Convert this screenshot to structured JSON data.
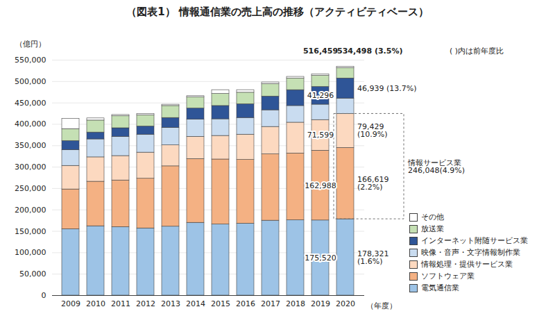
{
  "chart_data": {
    "type": "bar",
    "stacked": true,
    "title": "（図表1） 情報通信業の売上高の推移（アクティビティベース）",
    "ylabel": "（億円）",
    "xlabel": "（年度）",
    "note": "( )内は前年度比",
    "categories": [
      "2009",
      "2010",
      "2011",
      "2012",
      "2013",
      "2014",
      "2015",
      "2016",
      "2017",
      "2018",
      "2019",
      "2020"
    ],
    "series": [
      {
        "name": "電気通信業",
        "color": "#9dc3e6",
        "values": [
          155000,
          162000,
          160000,
          157000,
          161000,
          170000,
          166000,
          168000,
          175000,
          176000,
          175520,
          178321
        ]
      },
      {
        "name": "ソフトウェア業",
        "color": "#f4b183",
        "values": [
          93000,
          104000,
          109000,
          116000,
          141000,
          149000,
          152000,
          149000,
          155000,
          156000,
          162988,
          166619
        ]
      },
      {
        "name": "情報処理・提供サービス業",
        "color": "#fcd9c0",
        "values": [
          55000,
          57000,
          57000,
          61000,
          49000,
          52000,
          55000,
          59000,
          64000,
          72000,
          71599,
          79429
        ]
      },
      {
        "name": "映像・音声・文字情報制作業",
        "color": "#c9dcf0",
        "values": [
          37000,
          42000,
          45000,
          42000,
          41000,
          40000,
          39000,
          39000,
          39000,
          39000,
          36000,
          36000
        ]
      },
      {
        "name": "インターネット附随サービス業",
        "color": "#2f5597",
        "values": [
          21000,
          16000,
          20000,
          19000,
          23000,
          26000,
          31000,
          32000,
          32000,
          37000,
          41296,
          46939
        ]
      },
      {
        "name": "放送業",
        "color": "#c5e0b4",
        "values": [
          28000,
          28000,
          28000,
          26000,
          28000,
          26000,
          28000,
          27000,
          29000,
          27000,
          26000,
          24000
        ]
      },
      {
        "name": "その他",
        "color": "#ffffff",
        "values": [
          24000,
          5000,
          3000,
          3000,
          3000,
          3000,
          9000,
          6000,
          4000,
          4000,
          3056,
          3190
        ]
      }
    ],
    "ylim": [
      0,
      550000
    ],
    "yticks": [
      0,
      {
        "value": 50000,
        "label": "50,000"
      },
      {
        "value": 100000,
        "label": "100,000"
      },
      {
        "value": 150000,
        "label": "150,000"
      },
      {
        "value": 200000,
        "label": "200,000"
      },
      {
        "value": 250000,
        "label": "250,000"
      },
      {
        "value": 300000,
        "label": "300,000"
      },
      {
        "value": 350000,
        "label": "350,000"
      },
      {
        "value": 400000,
        "label": "400,000"
      },
      {
        "value": 450000,
        "label": "450,000"
      },
      {
        "value": 500000,
        "label": "500,000"
      },
      {
        "value": 550000,
        "label": "550,000"
      }
    ],
    "grid": true,
    "legend": "bottom-right",
    "totals": [
      {
        "category": "2019",
        "value": 516459,
        "text": "516,459"
      },
      {
        "category": "2020",
        "value": 534498,
        "text": "534,498 (3.5%)"
      }
    ],
    "annotations": [
      {
        "category": "2019",
        "series": "インターネット附随サービス業",
        "text": "41,296"
      },
      {
        "category": "2019",
        "series": "情報処理・提供サービス業",
        "text": "71,599"
      },
      {
        "category": "2019",
        "series": "ソフトウェア業",
        "text": "162,988"
      },
      {
        "category": "2019",
        "series": "電気通信業",
        "text": "175,520"
      },
      {
        "category": "2020",
        "series": "インターネット附随サービス業",
        "text": "46,939 (13.7%)"
      },
      {
        "category": "2020",
        "series": "情報処理・提供サービス業",
        "text": "79,429\n(10.9%)"
      },
      {
        "category": "2020",
        "series": "ソフトウェア業",
        "text": "166,619\n(2.2%)"
      },
      {
        "category": "2020",
        "series": "電気通信業",
        "text": "178,321\n(1.6%)"
      }
    ],
    "group_annotation": {
      "category": "2020",
      "series": [
        "ソフトウェア業",
        "情報処理・提供サービス業"
      ],
      "value": 246048,
      "text": "情報サービス業\n246,048(4.9%)"
    }
  }
}
